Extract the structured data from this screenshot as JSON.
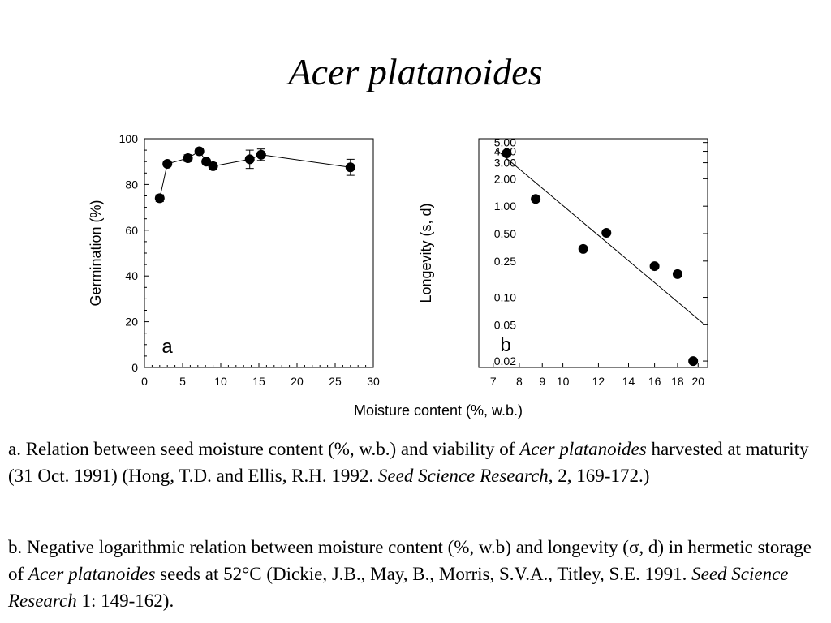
{
  "slide": {
    "title": "Acer platanoides"
  },
  "shared_xlabel": "Moisture content (%, w.b.)",
  "chart_data": [
    {
      "type": "line",
      "panel_label": "a",
      "ylabel": "Germination (%)",
      "xlabel": "",
      "xlim": [
        0,
        30
      ],
      "ylim": [
        0,
        100
      ],
      "xticks": [
        0,
        5,
        10,
        15,
        20,
        25,
        30
      ],
      "yticks": [
        0,
        20,
        40,
        60,
        80,
        100
      ],
      "grid": false,
      "series": [
        {
          "x": [
            2,
            3,
            5.7,
            7.2,
            8.1,
            9,
            13.8,
            15.3,
            27
          ],
          "y": [
            74,
            89,
            91.5,
            94.5,
            90,
            88,
            91,
            93,
            87.5
          ],
          "error": [
            1.5,
            1,
            1.5,
            1,
            1,
            1.5,
            4,
            2.5,
            3.5
          ]
        }
      ]
    },
    {
      "type": "scatter",
      "panel_label": "b",
      "ylabel": "Longevity (s, d)",
      "xlabel": "",
      "xscale": "log",
      "yscale": "log",
      "xlim": [
        6.5,
        21
      ],
      "ylim": [
        0.017,
        5.5
      ],
      "xticks": [
        7,
        8,
        9,
        10,
        12,
        14,
        16,
        18,
        20
      ],
      "yticks": [
        0.02,
        0.05,
        0.1,
        0.25,
        0.5,
        1,
        2,
        3,
        4,
        5
      ],
      "ytick_labels": [
        "0.02",
        "0.05",
        "0.10",
        "0.25",
        "0.50",
        "1.00",
        "2.00",
        "3.00",
        "4.00",
        "5.00"
      ],
      "grid": false,
      "series": [
        {
          "x": [
            7.5,
            8.7,
            11.1,
            12.5,
            16,
            18,
            19.5
          ],
          "y": [
            3.8,
            1.2,
            0.34,
            0.51,
            0.22,
            0.18,
            0.02
          ]
        }
      ],
      "regression_line": {
        "x": [
          7.1,
          20.5
        ],
        "y": [
          4.2,
          0.052
        ]
      }
    }
  ],
  "captions": {
    "a": {
      "p1": "a. Relation between seed moisture content (%, w.b.) and viability  of ",
      "species": "Acer platanoides",
      "p2": " harvested at maturity (31 Oct. 1991) (Hong, T.D. and Ellis, R.H. 1992. ",
      "journal": "Seed Science Research",
      "p3": ", 2, 169-172.)"
    },
    "b": {
      "p1": "b. Negative logarithmic relation between moisture content (%, w.b) and longevity (σ, d) in hermetic storage of  ",
      "species": "Acer platanoides",
      "p2": " seeds at 52°C (Dickie, J.B., May, B., Morris, S.V.A., Titley, S.E. 1991. ",
      "journal": "Seed Science Research",
      "p3": " 1: 149-162)."
    }
  }
}
